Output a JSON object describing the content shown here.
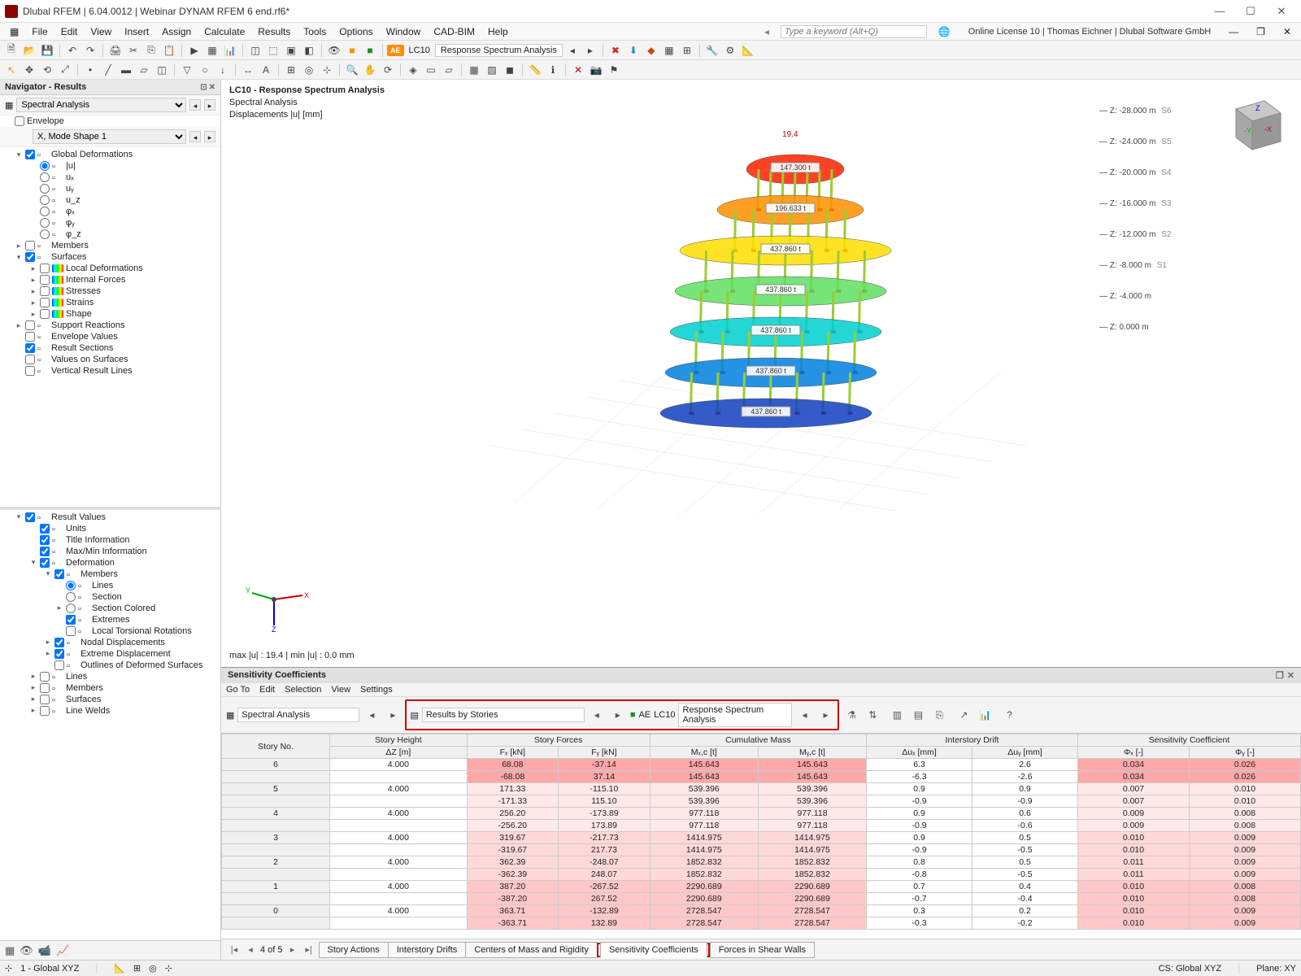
{
  "app": {
    "title": "Dlubal RFEM | 6.04.0012 | Webinar DYNAM RFEM 6 end.rf6*"
  },
  "menu": {
    "items": [
      "File",
      "Edit",
      "View",
      "Insert",
      "Assign",
      "Calculate",
      "Results",
      "Tools",
      "Options",
      "Window",
      "CAD-BIM",
      "Help"
    ],
    "keyword_placeholder": "Type a keyword (Alt+Q)",
    "license": "Online License 10 | Thomas Eichner | Dlubal Software GmbH"
  },
  "ribbon": {
    "ae": "AE",
    "lc": "LC10",
    "analysis": "Response Spectrum Analysis"
  },
  "navigator": {
    "title": "Navigator - Results",
    "analysis_selector": "Spectral Analysis",
    "envelope": "Envelope",
    "mode": "X, Mode Shape 1",
    "items1": [
      {
        "label": "Global Deformations",
        "ind": 0,
        "exp": "▾",
        "check": true
      },
      {
        "label": "|u|",
        "ind": 1,
        "radio": true,
        "sel": true
      },
      {
        "label": "uₓ",
        "ind": 1,
        "radio": true
      },
      {
        "label": "uᵧ",
        "ind": 1,
        "radio": true
      },
      {
        "label": "u_z",
        "ind": 1,
        "radio": true
      },
      {
        "label": "φₓ",
        "ind": 1,
        "radio": true
      },
      {
        "label": "φᵧ",
        "ind": 1,
        "radio": true
      },
      {
        "label": "φ_z",
        "ind": 1,
        "radio": true
      },
      {
        "label": "Members",
        "ind": 0,
        "exp": "▸"
      },
      {
        "label": "Surfaces",
        "ind": 0,
        "exp": "▾",
        "check": true
      },
      {
        "label": "Local Deformations",
        "ind": 1,
        "exp": "▸",
        "grad": true
      },
      {
        "label": "Internal Forces",
        "ind": 1,
        "exp": "▸",
        "grad": true
      },
      {
        "label": "Stresses",
        "ind": 1,
        "exp": "▸",
        "grad": true
      },
      {
        "label": "Strains",
        "ind": 1,
        "exp": "▸",
        "grad": true
      },
      {
        "label": "Shape",
        "ind": 1,
        "exp": "▸",
        "grad": true
      },
      {
        "label": "Support Reactions",
        "ind": 0,
        "exp": "▸"
      },
      {
        "label": "Envelope Values",
        "ind": 0
      },
      {
        "label": "Result Sections",
        "ind": 0,
        "check": true
      },
      {
        "label": "Values on Surfaces",
        "ind": 0
      },
      {
        "label": "Vertical Result Lines",
        "ind": 0
      }
    ],
    "items2": [
      {
        "label": "Result Values",
        "ind": 0,
        "exp": "▾",
        "check": true
      },
      {
        "label": "Units",
        "ind": 1,
        "check": true
      },
      {
        "label": "Title Information",
        "ind": 1,
        "check": true
      },
      {
        "label": "Max/Min Information",
        "ind": 1,
        "check": true
      },
      {
        "label": "Deformation",
        "ind": 1,
        "exp": "▾",
        "check": true
      },
      {
        "label": "Members",
        "ind": 2,
        "exp": "▾",
        "check": true
      },
      {
        "label": "Lines",
        "ind": 3,
        "radio": true,
        "sel": true
      },
      {
        "label": "Section",
        "ind": 3,
        "radio": true
      },
      {
        "label": "Section Colored",
        "ind": 3,
        "radio": true,
        "exp": "▸"
      },
      {
        "label": "Extremes",
        "ind": 3,
        "check": true
      },
      {
        "label": "Local Torsional Rotations",
        "ind": 3
      },
      {
        "label": "Nodal Displacements",
        "ind": 2,
        "exp": "▸",
        "check": true
      },
      {
        "label": "Extreme Displacement",
        "ind": 2,
        "exp": "▸",
        "check": true
      },
      {
        "label": "Outlines of Deformed Surfaces",
        "ind": 2
      },
      {
        "label": "Lines",
        "ind": 1,
        "exp": "▸"
      },
      {
        "label": "Members",
        "ind": 1,
        "exp": "▸"
      },
      {
        "label": "Surfaces",
        "ind": 1,
        "exp": "▸"
      },
      {
        "label": "Line Welds",
        "ind": 1,
        "exp": "▸"
      }
    ]
  },
  "canvas": {
    "title1": "LC10 - Response Spectrum Analysis",
    "title2": "Spectral Analysis",
    "title3": "Displacements |u| [mm]",
    "maxmin": "max |u| : 19.4 | min |u| : 0.0 mm",
    "top_val": "19.4",
    "story_labels": [
      "147.300 t",
      "196.633 t",
      "437.860 t",
      "437.860 t",
      "437.860 t",
      "437.860 t",
      "437.860 t"
    ],
    "z_levels": [
      "Z: -28.000 m",
      "Z: -24.000 m",
      "Z: -20.000 m",
      "Z: -16.000 m",
      "Z: -12.000 m",
      "Z: -8.000 m",
      "Z: -4.000 m",
      "Z: 0.000 m"
    ],
    "s_labels": [
      "S6",
      "S5",
      "S4",
      "S3",
      "S2",
      "S1"
    ]
  },
  "panel": {
    "title": "Sensitivity Coefficients",
    "menu": [
      "Go To",
      "Edit",
      "Selection",
      "View",
      "Settings"
    ],
    "spectral": "Spectral Analysis",
    "results_by": "Results by Stories",
    "ae": "AE",
    "lc": "LC10",
    "anal": "Response Spectrum Analysis",
    "group_headers": [
      "Story No.",
      "Story Height",
      "Story Forces",
      "Cumulative Mass",
      "Interstory Drift",
      "Sensitivity Coefficient"
    ],
    "col_headers": [
      "",
      "ΔZ [m]",
      "Fₓ [kN]",
      "Fᵧ [kN]",
      "Mₓ,c [t]",
      "Mᵧ,c [t]",
      "Δuₓ [mm]",
      "Δuᵧ [mm]",
      "Φₓ [-]",
      "Φᵧ [-]"
    ],
    "rows": [
      {
        "s": "6",
        "dz": "4.000",
        "fx": "68.08",
        "fy": "-37.14",
        "mx": "145.643",
        "my": "145.643",
        "dux": "6.3",
        "duy": "2.6",
        "px": "0.034",
        "py": "0.026",
        "g": 4
      },
      {
        "s": "",
        "dz": "",
        "fx": "-68.08",
        "fy": "37.14",
        "mx": "145.643",
        "my": "145.643",
        "dux": "-6.3",
        "duy": "-2.6",
        "px": "0.034",
        "py": "0.026",
        "g": 4
      },
      {
        "s": "5",
        "dz": "4.000",
        "fx": "171.33",
        "fy": "-115.10",
        "mx": "539.396",
        "my": "539.396",
        "dux": "0.9",
        "duy": "0.9",
        "px": "0.007",
        "py": "0.010",
        "g": 0
      },
      {
        "s": "",
        "dz": "",
        "fx": "-171.33",
        "fy": "115.10",
        "mx": "539.396",
        "my": "539.396",
        "dux": "-0.9",
        "duy": "-0.9",
        "px": "0.007",
        "py": "0.010",
        "g": 0
      },
      {
        "s": "4",
        "dz": "4.000",
        "fx": "256.20",
        "fy": "-173.89",
        "mx": "977.118",
        "my": "977.118",
        "dux": "0.9",
        "duy": "0.6",
        "px": "0.009",
        "py": "0.008",
        "g": 0
      },
      {
        "s": "",
        "dz": "",
        "fx": "-256.20",
        "fy": "173.89",
        "mx": "977.118",
        "my": "977.118",
        "dux": "-0.9",
        "duy": "-0.6",
        "px": "0.009",
        "py": "0.008",
        "g": 0
      },
      {
        "s": "3",
        "dz": "4.000",
        "fx": "319.67",
        "fy": "-217.73",
        "mx": "1414.975",
        "my": "1414.975",
        "dux": "0.9",
        "duy": "0.5",
        "px": "0.010",
        "py": "0.009",
        "g": 1
      },
      {
        "s": "",
        "dz": "",
        "fx": "-319.67",
        "fy": "217.73",
        "mx": "1414.975",
        "my": "1414.975",
        "dux": "-0.9",
        "duy": "-0.5",
        "px": "0.010",
        "py": "0.009",
        "g": 1
      },
      {
        "s": "2",
        "dz": "4.000",
        "fx": "362.39",
        "fy": "-248.07",
        "mx": "1852.832",
        "my": "1852.832",
        "dux": "0.8",
        "duy": "0.5",
        "px": "0.011",
        "py": "0.009",
        "g": 1
      },
      {
        "s": "",
        "dz": "",
        "fx": "-362.39",
        "fy": "248.07",
        "mx": "1852.832",
        "my": "1852.832",
        "dux": "-0.8",
        "duy": "-0.5",
        "px": "0.011",
        "py": "0.009",
        "g": 1
      },
      {
        "s": "1",
        "dz": "4.000",
        "fx": "387.20",
        "fy": "-267.52",
        "mx": "2290.689",
        "my": "2290.689",
        "dux": "0.7",
        "duy": "0.4",
        "px": "0.010",
        "py": "0.008",
        "g": 2
      },
      {
        "s": "",
        "dz": "",
        "fx": "-387.20",
        "fy": "267.52",
        "mx": "2290.689",
        "my": "2290.689",
        "dux": "-0.7",
        "duy": "-0.4",
        "px": "0.010",
        "py": "0.008",
        "g": 2
      },
      {
        "s": "0",
        "dz": "4.000",
        "fx": "363.71",
        "fy": "-132.89",
        "mx": "2728.547",
        "my": "2728.547",
        "dux": "0.3",
        "duy": "0.2",
        "px": "0.010",
        "py": "0.009",
        "g": 2
      },
      {
        "s": "",
        "dz": "",
        "fx": "-363.71",
        "fy": "132.89",
        "mx": "2728.547",
        "my": "2728.547",
        "dux": "-0.3",
        "duy": "-0.2",
        "px": "0.010",
        "py": "0.009",
        "g": 2
      }
    ],
    "pager": "4 of 5",
    "tabs": [
      "Story Actions",
      "Interstory Drifts",
      "Centers of Mass and Rigidity",
      "Sensitivity Coefficients",
      "Forces in Shear Walls"
    ],
    "active_tab": 3
  },
  "status": {
    "cs": "1 - Global XYZ",
    "cs2": "CS: Global XYZ",
    "plane": "Plane: XY"
  }
}
